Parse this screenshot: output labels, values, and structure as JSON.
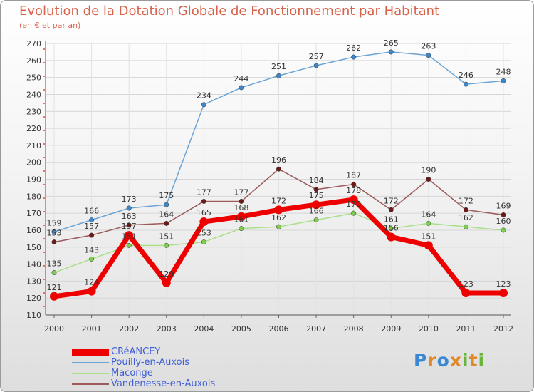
{
  "title": "Evolution de la Dotation Globale de Fonctionnement par Habitant",
  "subtitle": "(en € et par an)",
  "logo": {
    "text": "Proxiti",
    "colors": [
      "#3a87d6",
      "#e0892a",
      "#3a87d6",
      "#e0892a",
      "#67b53a",
      "#e0892a",
      "#67b53a"
    ]
  },
  "chart_data": {
    "type": "line",
    "title": "Evolution de la Dotation Globale de Fonctionnement par Habitant",
    "ylabel": "(en € et par an)",
    "xlabel": "",
    "categories": [
      "2000",
      "2001",
      "2002",
      "2003",
      "2004",
      "2005",
      "2006",
      "2007",
      "2008",
      "2009",
      "2010",
      "2011",
      "2012"
    ],
    "ylim": [
      110,
      270
    ],
    "yticks": [
      110,
      120,
      130,
      140,
      150,
      160,
      170,
      180,
      190,
      200,
      210,
      220,
      230,
      240,
      250,
      260,
      270
    ],
    "grid": true,
    "series": [
      {
        "name": "Pouilly-en-Auxois",
        "color": "#6aa4d4",
        "markerColor": "#3f86c6",
        "values": [
          159,
          166,
          173,
          175,
          234,
          244,
          251,
          257,
          262,
          265,
          263,
          246,
          248
        ],
        "labels": [
          "159",
          "166",
          "173",
          "175",
          "234",
          "244",
          "251",
          "257",
          "262",
          "265",
          "263",
          "246",
          "248"
        ]
      },
      {
        "name": "Maconge",
        "color": "#a9df86",
        "markerColor": "#7fcc52",
        "values": [
          135,
          143,
          151,
          151,
          153,
          161,
          162,
          166,
          170,
          161,
          164,
          162,
          160
        ],
        "labels": [
          "135",
          "143",
          "151",
          "151",
          "153",
          "161",
          "162",
          "166",
          "170",
          "161",
          "164",
          "162",
          "160"
        ]
      },
      {
        "name": "Vandenesse-en-Auxois",
        "color": "#9c5a5a",
        "markerColor": "#6b1a1a",
        "values": [
          153,
          157,
          163,
          164,
          177,
          177,
          196,
          184,
          187,
          172,
          190,
          172,
          169
        ],
        "labels": [
          "153",
          "157",
          "163",
          "164",
          "177",
          "177",
          "196",
          "184",
          "187",
          "172",
          "190",
          "172",
          "169"
        ]
      },
      {
        "name": "CRéANCEY",
        "color": "#ee0000",
        "markerColor": "#ee0000",
        "values": [
          121,
          124,
          157,
          129,
          165,
          168,
          172,
          175,
          178,
          156,
          151,
          123,
          123
        ],
        "labels": [
          "121",
          "124",
          "157",
          "129",
          "165",
          "168",
          "172",
          "175",
          "178",
          "156",
          "151",
          "123",
          "123"
        ]
      }
    ],
    "legend": [
      {
        "name": "CRéANCEY",
        "color": "#ee0000",
        "thick": true
      },
      {
        "name": "Pouilly-en-Auxois",
        "color": "#6aa4d4",
        "thick": false
      },
      {
        "name": "Maconge",
        "color": "#a9df86",
        "thick": false
      },
      {
        "name": "Vandenesse-en-Auxois",
        "color": "#9c5a5a",
        "thick": false
      }
    ]
  }
}
